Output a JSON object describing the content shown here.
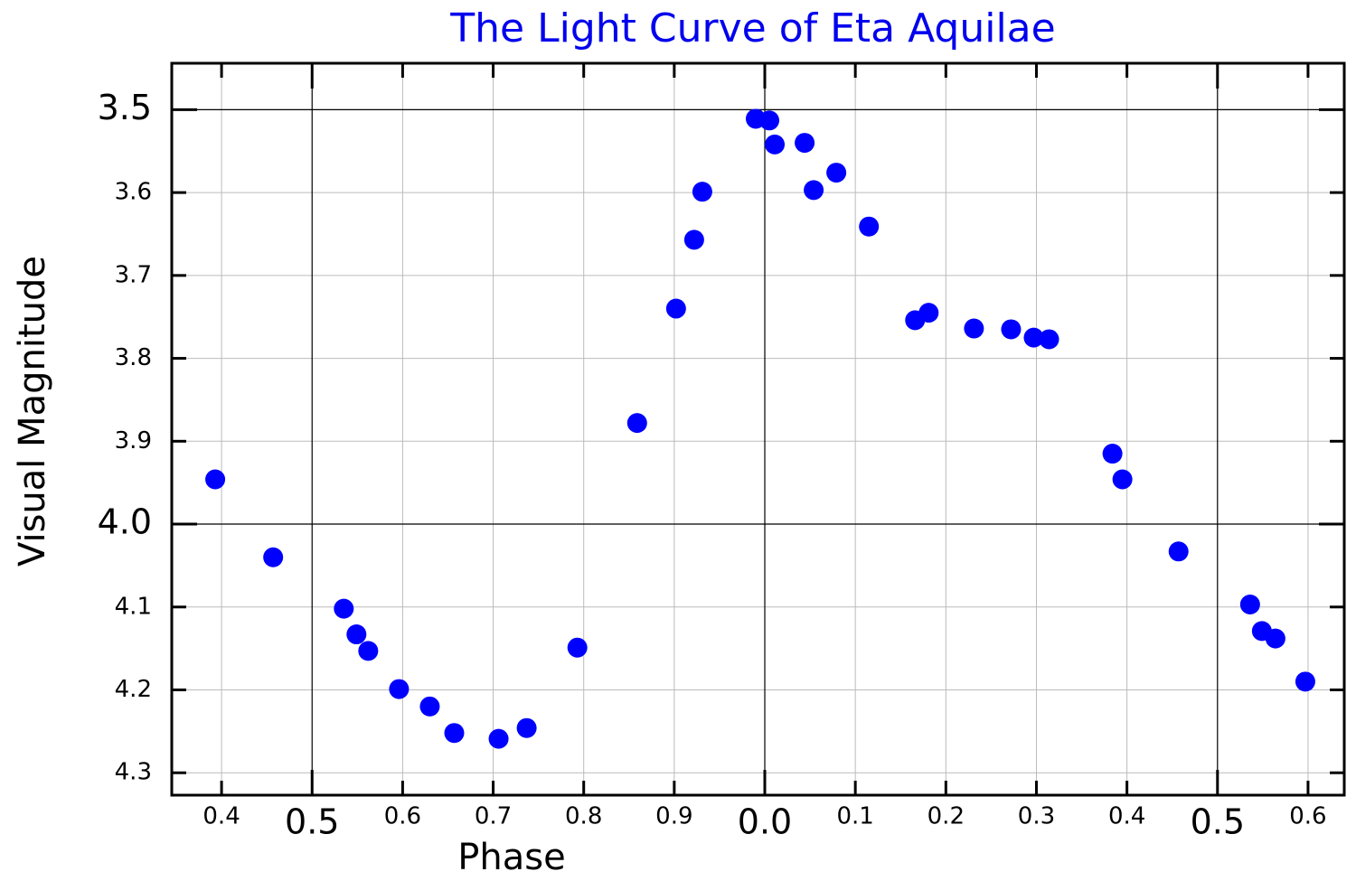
{
  "chart_data": {
    "type": "scatter",
    "title": "The Light Curve of Eta Aquilae",
    "x_label": "Phase",
    "y_label": "Visual Magnitude",
    "color": "#0000ff",
    "grid": true,
    "x": [
      0.393,
      0.457,
      0.535,
      0.549,
      0.562,
      0.596,
      0.63,
      0.657,
      0.706,
      0.737,
      0.793,
      0.859,
      0.902,
      0.922,
      0.931,
      0.99,
      1.005,
      1.011,
      1.044,
      1.054,
      1.079,
      1.115,
      1.166,
      1.181,
      1.231,
      1.272,
      1.297,
      1.314,
      1.384,
      1.395,
      1.457,
      1.536,
      1.549,
      1.564,
      1.597
    ],
    "values": [
      3.946,
      4.04,
      4.102,
      4.133,
      4.153,
      4.199,
      4.22,
      4.252,
      4.259,
      4.246,
      4.149,
      3.878,
      3.74,
      3.657,
      3.599,
      3.511,
      3.513,
      3.542,
      3.54,
      3.597,
      3.576,
      3.641,
      3.754,
      3.745,
      3.764,
      3.765,
      3.775,
      3.777,
      3.915,
      3.946,
      4.033,
      4.097,
      4.129,
      4.138,
      4.19
    ],
    "xlim": [
      0.345,
      1.64
    ],
    "xticks": [
      0.4,
      0.6,
      0.7,
      0.8,
      0.9,
      {
        "value": 1.1,
        "label": "0.1"
      },
      {
        "value": 1.2,
        "label": "0.2"
      },
      {
        "value": 1.3,
        "label": "0.3"
      },
      {
        "value": 1.4,
        "label": "0.4"
      },
      {
        "value": 1.6,
        "label": "0.6"
      }
    ],
    "xticks_major": [
      0.5,
      {
        "value": 1.0,
        "label": "0.0"
      },
      {
        "value": 1.5,
        "label": "0.5"
      }
    ],
    "ylim": [
      4.327,
      3.444
    ],
    "yticks": [
      3.6,
      3.7,
      3.8,
      3.9,
      4.1,
      4.2,
      4.3
    ],
    "yticks_major": [
      3.5,
      {
        "value": 4,
        "label": "4.0"
      }
    ]
  }
}
